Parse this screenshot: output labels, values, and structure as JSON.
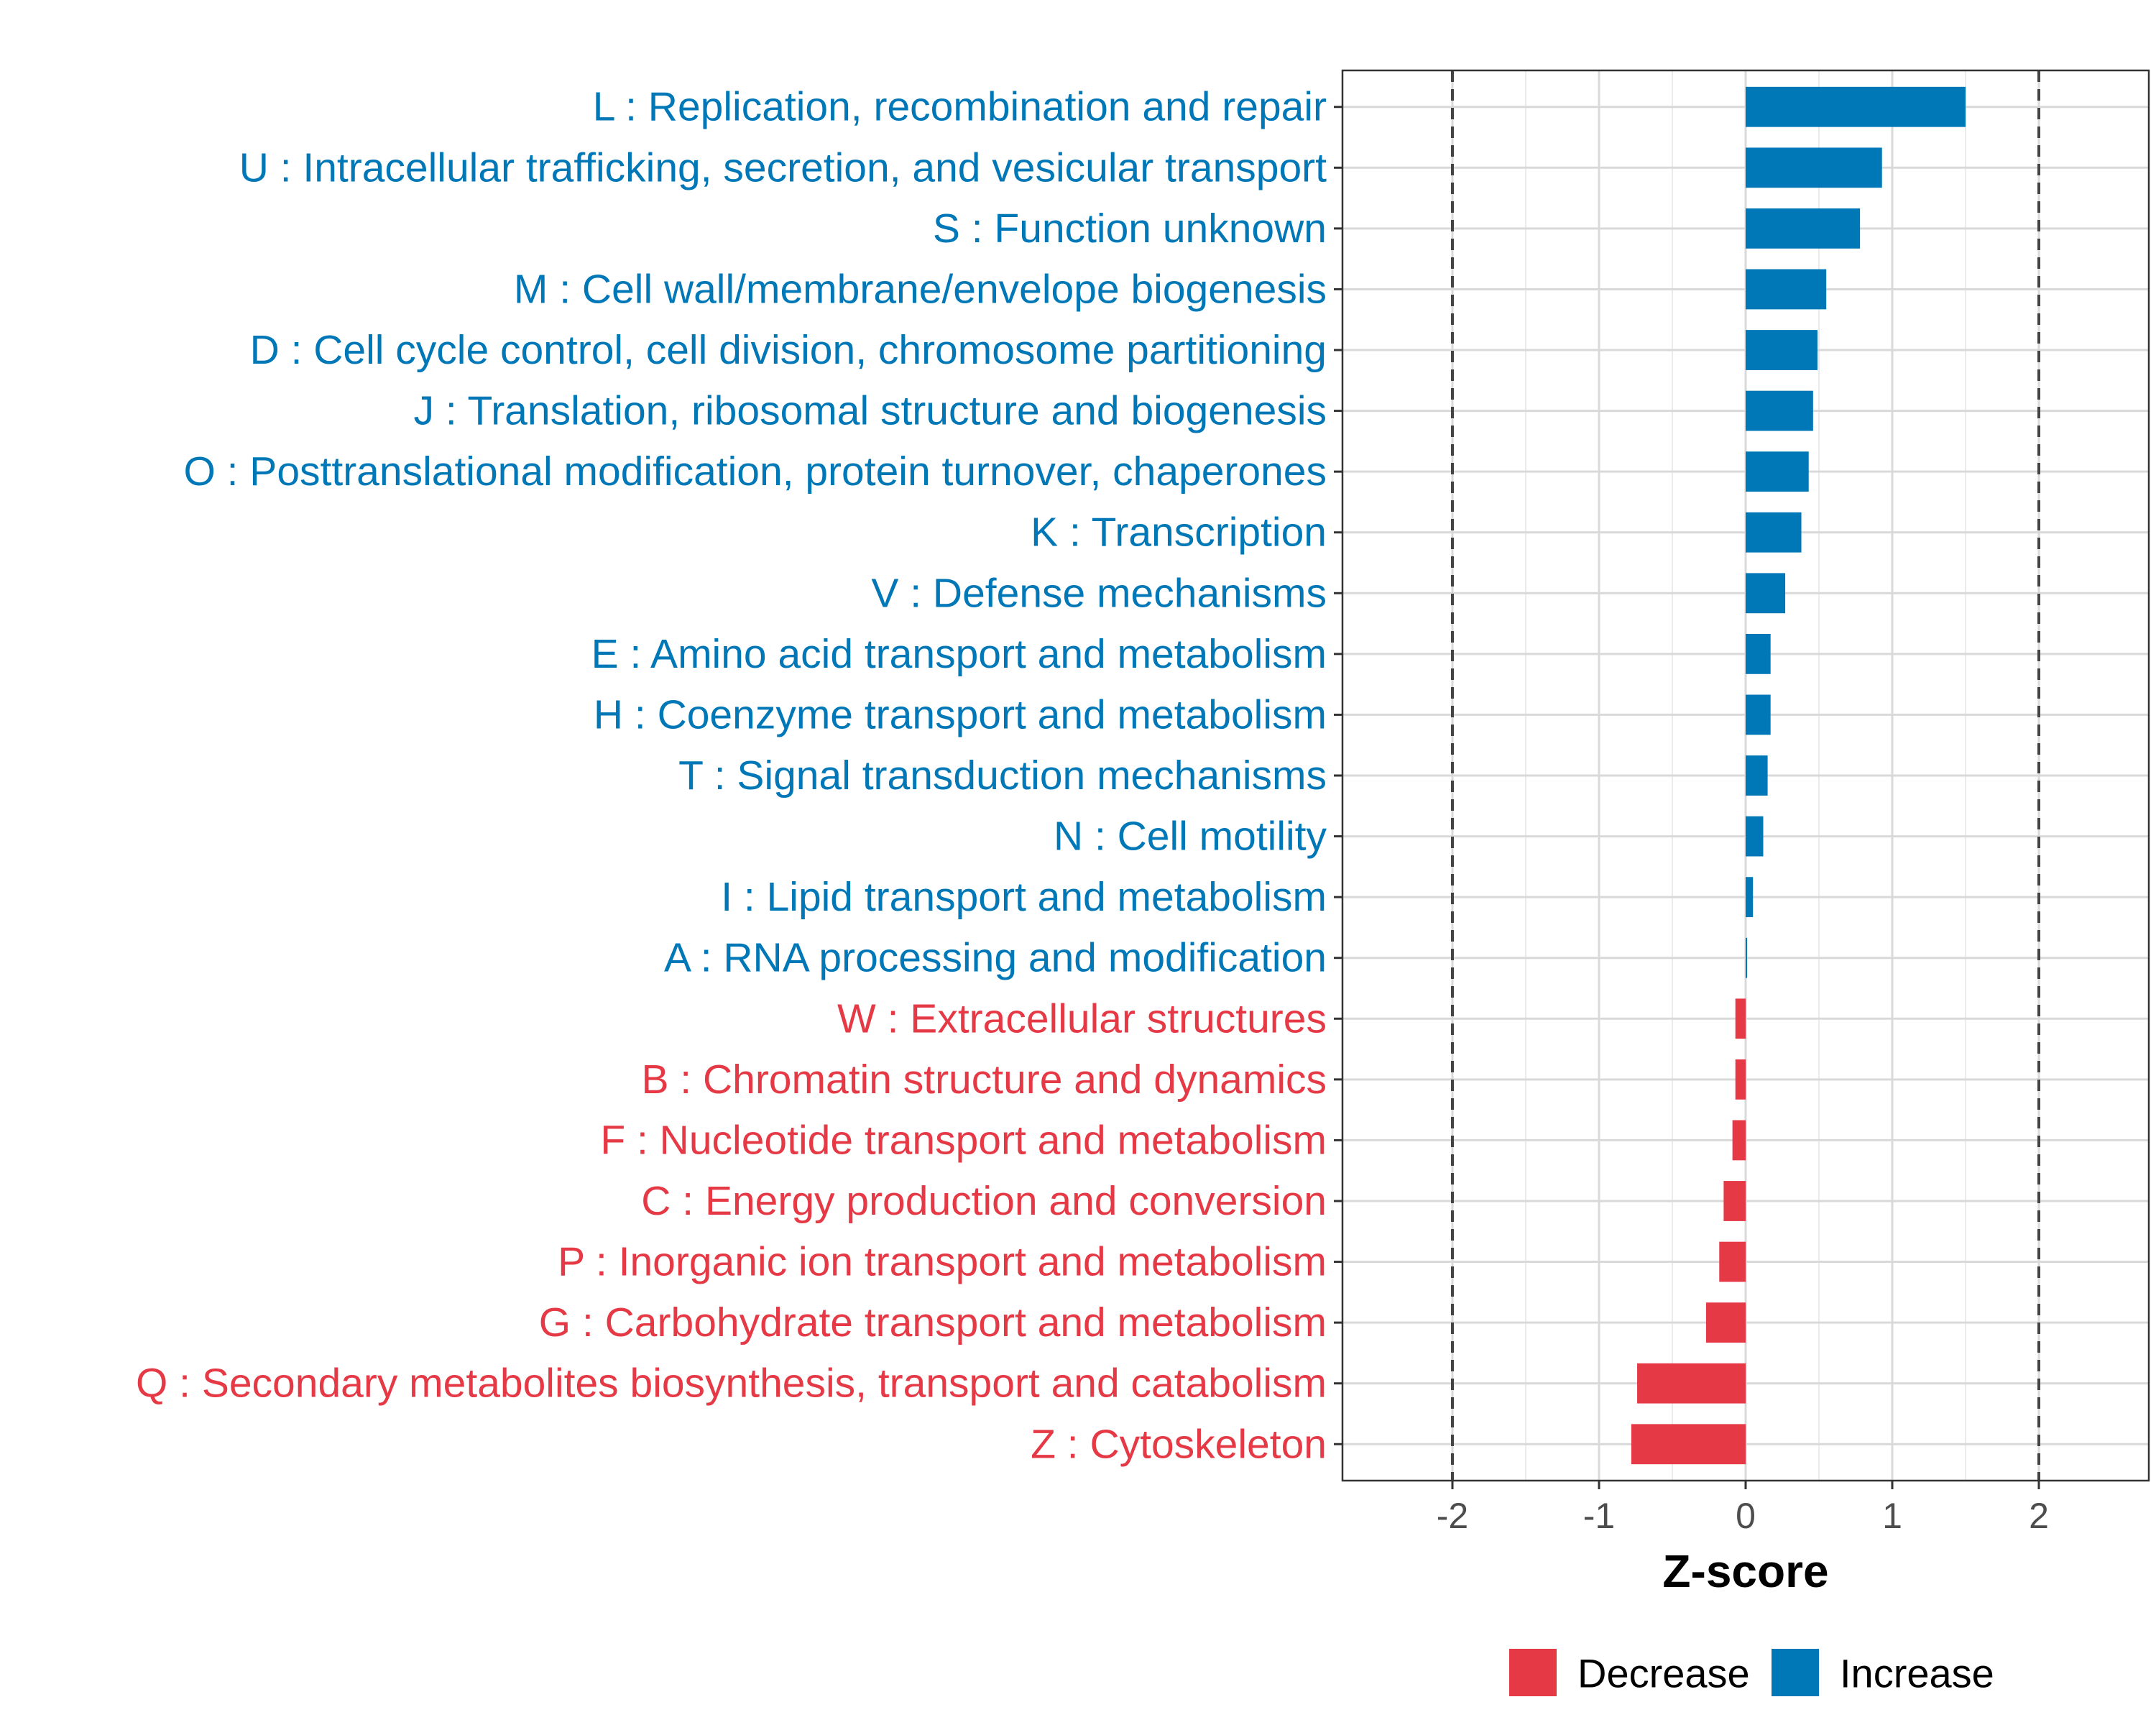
{
  "chart_data": {
    "type": "bar",
    "orientation": "horizontal",
    "xlabel": "Z-score",
    "xlim": [
      -2.75,
      2.75
    ],
    "xticks": [
      -2,
      -1,
      0,
      1,
      2
    ],
    "xtick_labels": [
      "-2",
      "-1",
      "0",
      "1",
      "2"
    ],
    "reference_lines": [
      -2,
      2
    ],
    "grid": true,
    "categories": [
      "L : Replication, recombination and repair",
      "U : Intracellular trafficking, secretion, and vesicular transport",
      "S : Function unknown",
      "M : Cell wall/membrane/envelope biogenesis",
      "D : Cell cycle control, cell division, chromosome partitioning",
      "J : Translation, ribosomal structure and biogenesis",
      "O : Posttranslational modification, protein turnover, chaperones",
      "K : Transcription",
      "V : Defense mechanisms",
      "E : Amino acid transport and metabolism",
      "H : Coenzyme transport and metabolism",
      "T : Signal transduction mechanisms",
      "N : Cell motility",
      "I : Lipid transport and metabolism",
      "A : RNA processing and modification",
      "W : Extracellular structures",
      "B : Chromatin structure and dynamics",
      "F : Nucleotide transport and metabolism",
      "C : Energy production and conversion",
      "P : Inorganic ion transport and metabolism",
      "G : Carbohydrate transport and metabolism",
      "Q : Secondary metabolites biosynthesis, transport and catabolism",
      "Z : Cytoskeleton"
    ],
    "values": [
      1.5,
      0.93,
      0.78,
      0.55,
      0.49,
      0.46,
      0.43,
      0.38,
      0.27,
      0.17,
      0.17,
      0.15,
      0.12,
      0.05,
      0.01,
      -0.07,
      -0.07,
      -0.09,
      -0.15,
      -0.18,
      -0.27,
      -0.74,
      -0.78
    ],
    "groups": [
      "Increase",
      "Increase",
      "Increase",
      "Increase",
      "Increase",
      "Increase",
      "Increase",
      "Increase",
      "Increase",
      "Increase",
      "Increase",
      "Increase",
      "Increase",
      "Increase",
      "Increase",
      "Decrease",
      "Decrease",
      "Decrease",
      "Decrease",
      "Decrease",
      "Decrease",
      "Decrease",
      "Decrease"
    ],
    "legend": {
      "position": "bottom",
      "entries": [
        {
          "label": "Decrease",
          "color": "#E63946"
        },
        {
          "label": "Increase",
          "color": "#0077B6"
        }
      ]
    },
    "colors": {
      "Increase": "#0077B6",
      "Decrease": "#E63946"
    }
  }
}
